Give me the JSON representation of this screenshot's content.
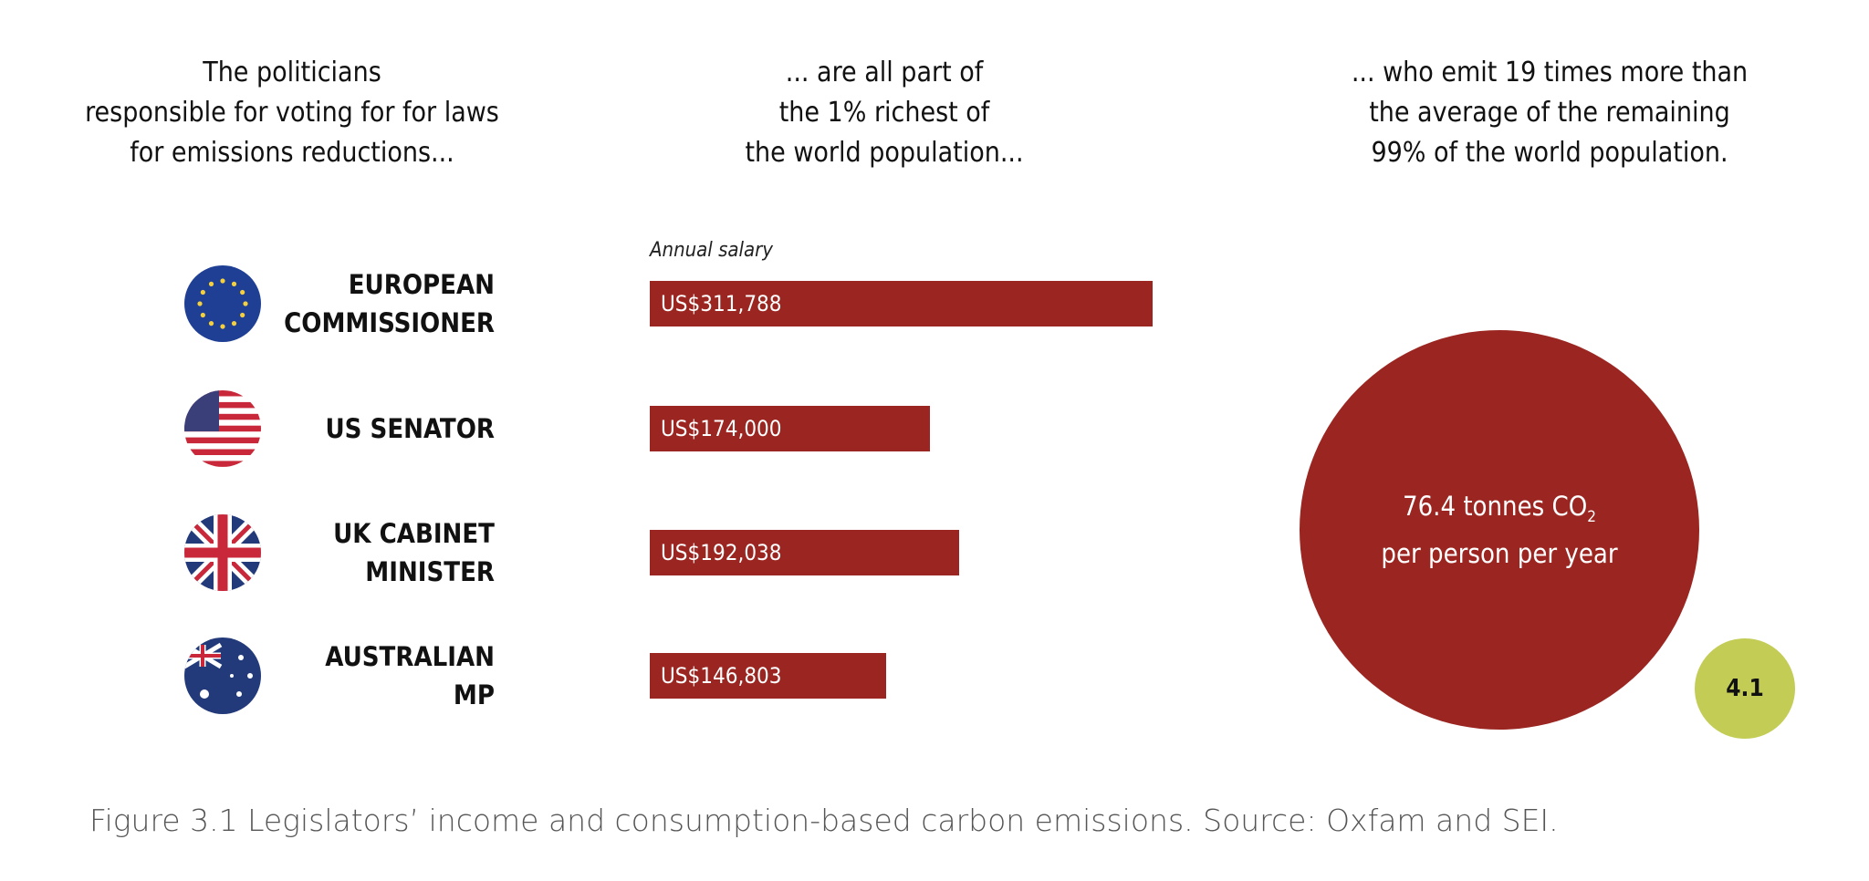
{
  "headers": [
    "The politicians\nresponsible for voting for for laws\nfor emissions reductions...",
    "... are all part of\nthe 1% richest of\nthe world population...",
    "... who emit 19 times more than\nthe average of the remaining\n99% of the world population."
  ],
  "chart_data": [
    {
      "type": "bar",
      "orientation": "horizontal",
      "title": "Annual salary",
      "categories": [
        "EUROPEAN\nCOMMISSIONER",
        "US SENATOR",
        "UK CABINET\nMINISTER",
        "AUSTRALIAN\nMP"
      ],
      "values": [
        311788,
        174000,
        192038,
        146803
      ],
      "data_labels": [
        "US$311,788",
        "US$174,000",
        "US$192,038",
        "US$146,803"
      ],
      "flag_icons": [
        "eu-flag-icon",
        "us-flag-icon",
        "uk-flag-icon",
        "australia-flag-icon"
      ],
      "color": "#9b2520"
    },
    {
      "type": "bubble",
      "values": [
        76.4,
        4.1
      ],
      "labels": {
        "main": "76.4  tonnes CO",
        "sub": "2",
        "line2": "per person per year",
        "small": "4.1"
      },
      "colors": [
        "#9b2520",
        "#c3cc55"
      ]
    }
  ],
  "caption": "Figure 3.1 Legislators’ income and consumption-based carbon emissions. Source: Oxfam and SEI."
}
